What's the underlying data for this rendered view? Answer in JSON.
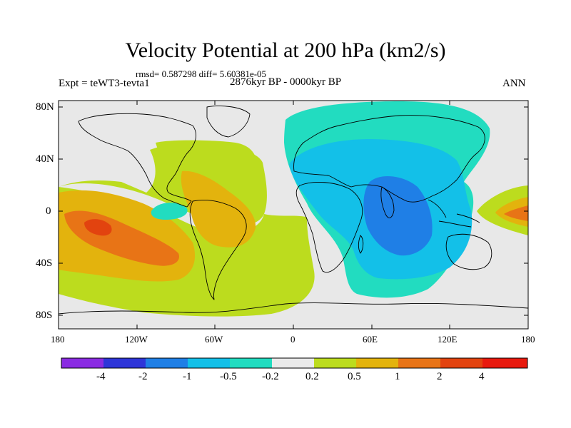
{
  "header": {
    "title": "Velocity Potential at 200 hPa (km2/s)",
    "stats": "rmsd= 0.587298 diff= 5.60381e-05",
    "experiment": "Expt = teWT3-tevta1",
    "period": "2876kyr BP - 0000kyr BP",
    "season": "ANN"
  },
  "axes": {
    "lat_labels": [
      "80N",
      "40N",
      "0",
      "40S",
      "80S"
    ],
    "lon_labels": [
      "180",
      "120W",
      "60W",
      "0",
      "60E",
      "120E",
      "180"
    ]
  },
  "colorbar": {
    "labels": [
      "-4",
      "-2",
      "-1",
      "-0.5",
      "-0.2",
      "0.2",
      "0.5",
      "1",
      "2",
      "4"
    ],
    "colors": [
      "#8a2be2",
      "#2e35d8",
      "#1f7fe6",
      "#13c0e8",
      "#22dcc0",
      "#eaeaea",
      "#bcdc1e",
      "#e3b30d",
      "#e87416",
      "#e2430f",
      "#e8190e"
    ]
  },
  "palette": {
    "land_fill": "#e8e8e8",
    "coast": "#000000",
    "frame": "#000000"
  }
}
